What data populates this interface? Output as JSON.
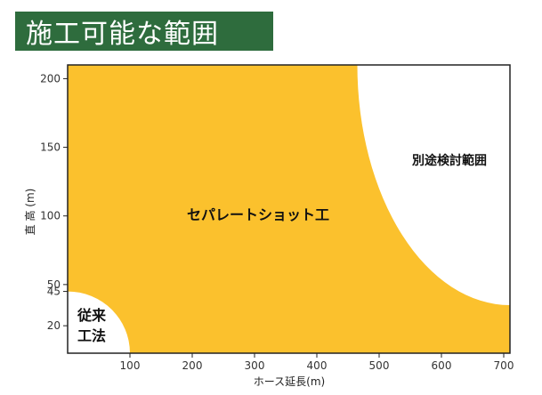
{
  "title": "施工可能な範囲",
  "colors": {
    "title_bg": "#2e6c3d",
    "region_fill": "#fbc12d",
    "frame": "#222222"
  },
  "chart_data": {
    "type": "area",
    "xlabel": "ホース延長(m)",
    "ylabel": "直 高 (m)",
    "xlim": [
      0,
      710
    ],
    "ylim": [
      0,
      210
    ],
    "x_ticks": [
      100,
      200,
      300,
      400,
      500,
      600,
      700
    ],
    "y_ticks": [
      20,
      45,
      50,
      100,
      150,
      200
    ],
    "regions": [
      {
        "label": "従来\n工法",
        "shape": "quarter-ellipse from origin",
        "x_extent": 100,
        "y_extent": 45
      },
      {
        "label": "セパレートショット工",
        "shape": "area between the two boundaries"
      },
      {
        "label": "別途検討範囲",
        "shape": "quarter-ellipse toward top-right",
        "x_start": 465,
        "y_at_right_edge": 35
      }
    ]
  }
}
